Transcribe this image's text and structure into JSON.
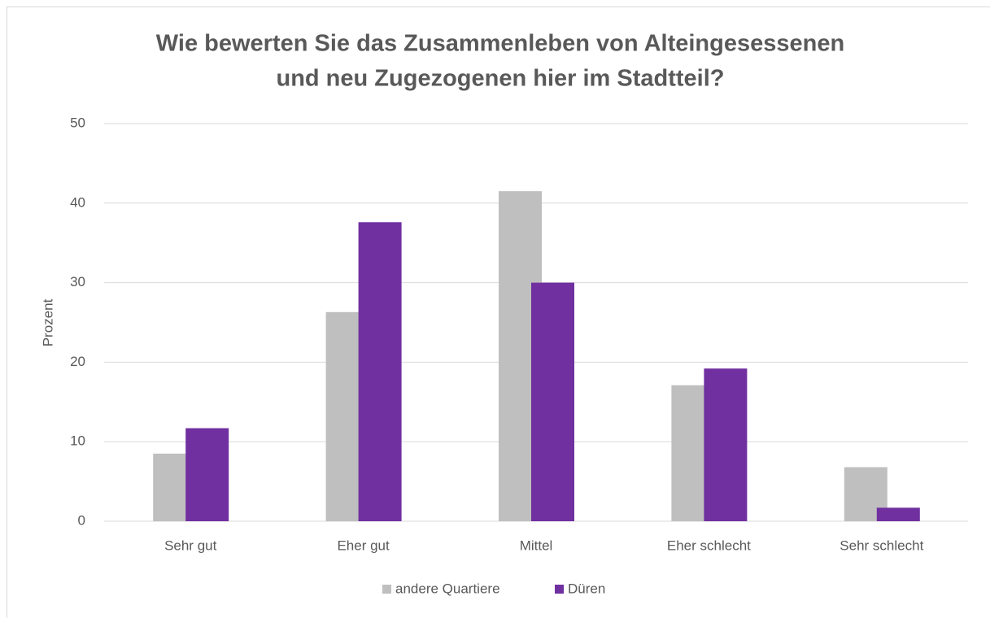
{
  "chart_data": {
    "type": "bar",
    "title": [
      "Wie bewerten Sie das Zusammenleben von Alteingesessenen",
      "und neu Zugezogenen hier im Stadtteil?"
    ],
    "y_label": "Prozent",
    "categories": [
      "Sehr gut",
      "Eher gut",
      "Mittel",
      "Eher schlecht",
      "Sehr schlecht"
    ],
    "series": [
      {
        "name": "andere Quartiere",
        "color": "#bfbfbf",
        "values": [
          8.5,
          26.3,
          41.5,
          17.1,
          6.8
        ]
      },
      {
        "name": "Düren",
        "color": "#7030a0",
        "values": [
          11.7,
          37.6,
          30.0,
          19.2,
          1.7
        ]
      }
    ],
    "ylim": [
      0,
      50
    ],
    "yticks": [
      0,
      10,
      20,
      30,
      40,
      50
    ],
    "grid": true,
    "legend": "bottom"
  }
}
